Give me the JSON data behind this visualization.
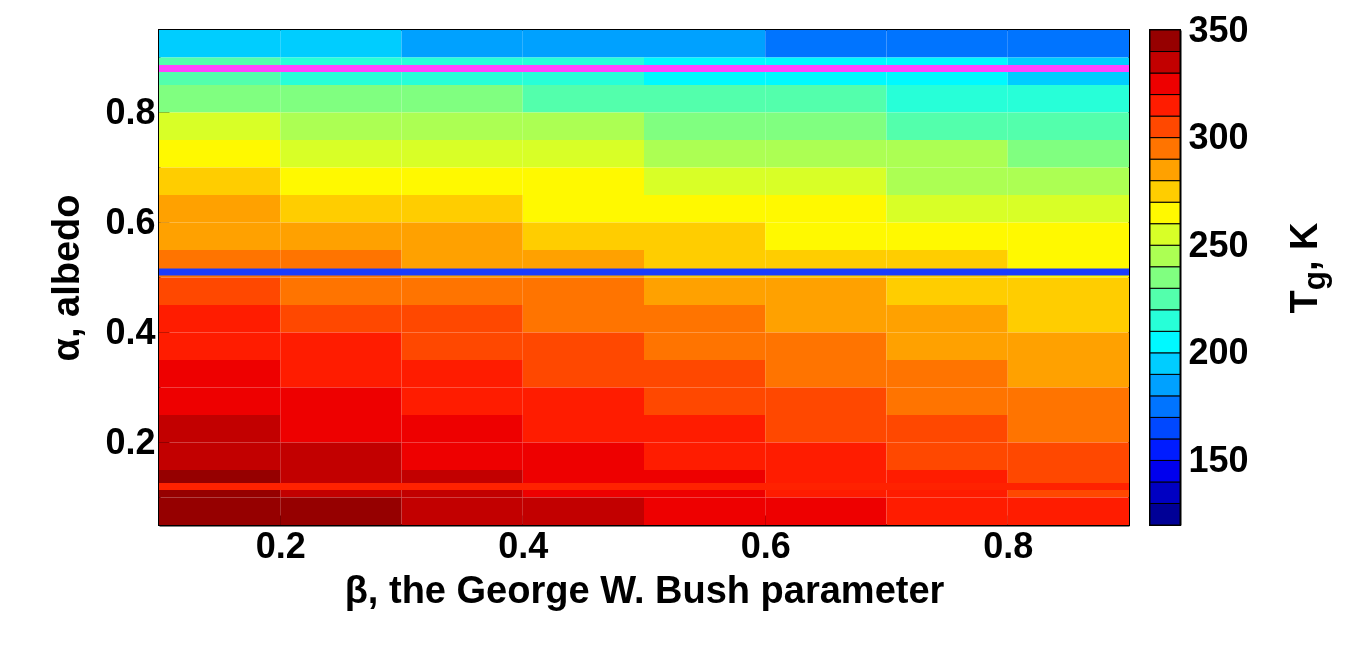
{
  "chart_data": {
    "type": "heatmap",
    "xlabel": "β, the George W. Bush parameter",
    "ylabel": "α, albedo",
    "clabel": "T$_{g}$, K",
    "x": [
      0.15,
      0.25,
      0.35,
      0.45,
      0.55,
      0.65,
      0.75,
      0.85
    ],
    "y": [
      0.925,
      0.875,
      0.825,
      0.775,
      0.725,
      0.675,
      0.625,
      0.575,
      0.525,
      0.475,
      0.425,
      0.375,
      0.325,
      0.275,
      0.225,
      0.175,
      0.125,
      0.075
    ],
    "cells": [
      [
        195,
        192,
        189,
        186,
        182,
        179,
        176,
        173
      ],
      [
        221,
        218,
        215,
        211,
        208,
        204,
        201,
        198
      ],
      [
        237,
        234,
        231,
        227,
        224,
        220,
        217,
        214
      ],
      [
        250,
        247,
        243,
        240,
        236,
        233,
        229,
        226
      ],
      [
        262,
        258,
        255,
        251,
        247,
        243,
        240,
        236
      ],
      [
        272,
        268,
        264,
        260,
        257,
        253,
        249,
        245
      ],
      [
        281,
        277,
        273,
        269,
        265,
        261,
        257,
        253
      ],
      [
        289,
        285,
        281,
        277,
        272,
        268,
        264,
        260
      ],
      [
        296,
        292,
        288,
        284,
        279,
        275,
        271,
        267
      ],
      [
        303,
        299,
        294,
        290,
        286,
        282,
        277,
        273
      ],
      [
        310,
        305,
        301,
        296,
        292,
        287,
        283,
        278
      ],
      [
        316,
        311,
        306,
        302,
        297,
        293,
        288,
        283
      ],
      [
        321,
        316,
        311,
        307,
        302,
        298,
        293,
        288
      ],
      [
        327,
        322,
        317,
        312,
        308,
        303,
        298,
        293
      ],
      [
        332,
        327,
        322,
        317,
        312,
        307,
        302,
        297
      ],
      [
        336,
        331,
        326,
        321,
        316,
        311,
        306,
        301
      ],
      [
        341,
        336,
        331,
        326,
        321,
        316,
        311,
        306
      ],
      [
        346,
        341,
        336,
        331,
        326,
        321,
        316,
        311
      ]
    ],
    "xlim": [
      0.1,
      0.9
    ],
    "xticks": [
      0.2,
      0.4,
      0.6,
      0.8
    ],
    "ylim": [
      0.05,
      0.95
    ],
    "yticks": [
      0.2,
      0.4,
      0.6,
      0.8
    ],
    "clim": [
      120,
      350
    ],
    "cticks": [
      150,
      200,
      250,
      300,
      350
    ],
    "ref_lines": [
      {
        "axis": "y",
        "value": 0.88,
        "color": "#ff44ff"
      },
      {
        "axis": "y",
        "value": 0.51,
        "color": "#1a3cff"
      },
      {
        "axis": "y",
        "value": 0.12,
        "color": "#ff2200"
      }
    ]
  }
}
